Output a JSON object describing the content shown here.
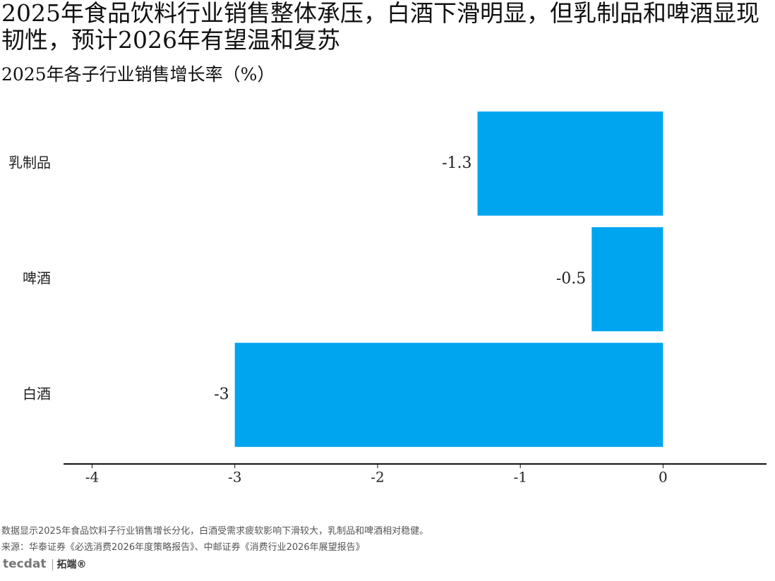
{
  "chart_data": {
    "type": "barh",
    "title": "2025年食品饮料行业销售整体承压，白酒下滑明显，但乳制品和啤酒显现韧性，预计2026年有望温和复苏",
    "subtitle": "2025年各子行业销售增长率（%）",
    "categories": [
      "乳制品",
      "啤酒",
      "白酒"
    ],
    "values": [
      -1.3,
      -0.5,
      -3
    ],
    "color": "#00a5ef",
    "xlim": [
      -4.2,
      0.7
    ],
    "xticks": [
      -4,
      -3,
      -2,
      -1,
      0
    ],
    "grid": false
  },
  "footer": {
    "note": "数据显示2025年食品饮料子行业销售增长分化，白酒受需求疲软影响下滑较大，乳制品和啤酒相对稳健。",
    "source": "来源：华泰证券《必选消费2026年度策略报告》、中邮证券《消费行业2026年展望报告》",
    "brand": "tecdat",
    "brand_cn": "拓端®"
  }
}
